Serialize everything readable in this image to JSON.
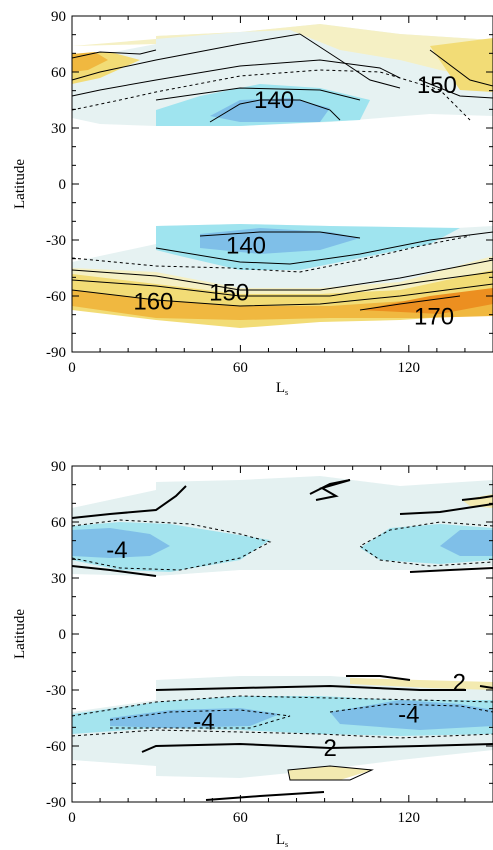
{
  "chart_data": [
    {
      "type": "contour",
      "title": "",
      "xlabel": "L",
      "xlabel_sub": "s",
      "ylabel": "Latitude",
      "xlim": [
        0,
        150
      ],
      "ylim": [
        -90,
        90
      ],
      "xticks": [
        0,
        60,
        120
      ],
      "yticks": [
        90,
        60,
        30,
        0,
        -30,
        -60,
        -90
      ],
      "contour_labels": [
        {
          "text": "140",
          "x": 72,
          "y": 45
        },
        {
          "text": "150",
          "x": 130,
          "y": 53
        },
        {
          "text": "140",
          "x": 62,
          "y": -33
        },
        {
          "text": "150",
          "x": 56,
          "y": -58
        },
        {
          "text": "160",
          "x": 29,
          "y": -63
        },
        {
          "text": "170",
          "x": 129,
          "y": -71
        }
      ],
      "fill_colors": {
        "cold_deep": "#7fbfe8",
        "cold": "#9fe4ef",
        "neutral": "#e6f2f2",
        "warm_light": "#f5f0c4",
        "warm": "#f2dc76",
        "hot": "#f0b840",
        "hottest": "#ec8f20"
      }
    },
    {
      "type": "contour",
      "title": "",
      "xlabel": "L",
      "xlabel_sub": "s",
      "ylabel": "Latitude",
      "xlim": [
        0,
        150
      ],
      "ylim": [
        -90,
        90
      ],
      "xticks": [
        0,
        60,
        120
      ],
      "yticks": [
        90,
        60,
        30,
        0,
        -30,
        -60,
        -90
      ],
      "contour_labels": [
        {
          "text": "-4",
          "x": 16,
          "y": 45
        },
        {
          "text": "2",
          "x": 138,
          "y": -26
        },
        {
          "text": "-4",
          "x": 47,
          "y": -47
        },
        {
          "text": "-4",
          "x": 120,
          "y": -43
        },
        {
          "text": "2",
          "x": 92,
          "y": -61
        }
      ],
      "fill_colors": {
        "neg_deep": "#7fbfe8",
        "neg": "#a4e4ee",
        "neutral": "#e4f1f1",
        "pos": "#f3eab0"
      }
    }
  ]
}
